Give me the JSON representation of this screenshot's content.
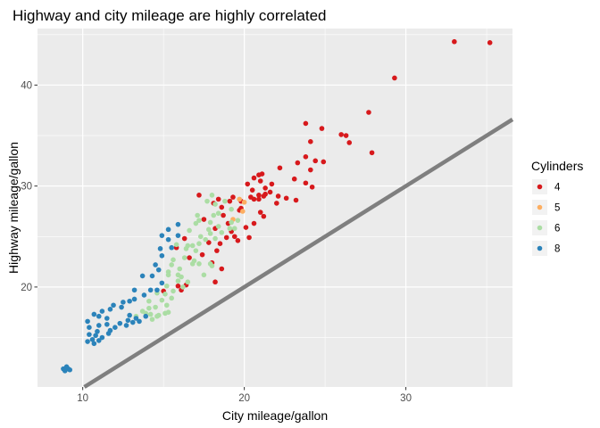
{
  "chart_data": {
    "type": "scatter",
    "title": "Highway and city mileage are highly correlated",
    "xlabel": "City mileage/gallon",
    "ylabel": "Highway mileage/gallon",
    "xlim": [
      7.2,
      36.6
    ],
    "ylim": [
      10.1,
      45.6
    ],
    "x_ticks": [
      10,
      20,
      30
    ],
    "y_ticks": [
      20,
      30,
      40
    ],
    "grid": true,
    "legend": {
      "title": "Cylinders",
      "position": "right"
    },
    "reference_line": {
      "intercept": 0,
      "slope": 1,
      "color": "#7f7f7f"
    },
    "colors": {
      "4": "#d7191c",
      "5": "#fdae61",
      "6": "#abdda4",
      "8": "#2b83ba",
      "panel": "#ebebeb",
      "grid": "#ffffff"
    },
    "series": [
      {
        "name": "4",
        "color": "#d7191c",
        "points": [
          [
            33,
            44.3
          ],
          [
            35.2,
            44.2
          ],
          [
            29.3,
            40.7
          ],
          [
            27.7,
            37.3
          ],
          [
            23.8,
            36.2
          ],
          [
            24.8,
            35.7
          ],
          [
            26,
            35.1
          ],
          [
            26.3,
            35
          ],
          [
            26.5,
            34.3
          ],
          [
            24.1,
            34.4
          ],
          [
            27.9,
            33.3
          ],
          [
            23.8,
            32.9
          ],
          [
            24.4,
            32.5
          ],
          [
            24.9,
            32.4
          ],
          [
            24.1,
            31.6
          ],
          [
            23.3,
            32.3
          ],
          [
            22.2,
            31.8
          ],
          [
            21.1,
            31.2
          ],
          [
            20.9,
            31.1
          ],
          [
            20.6,
            30.8
          ],
          [
            21,
            30.5
          ],
          [
            20.2,
            30.2
          ],
          [
            21.7,
            30.2
          ],
          [
            23.1,
            30.7
          ],
          [
            23.8,
            30.3
          ],
          [
            24.2,
            29.9
          ],
          [
            20.5,
            29.6
          ],
          [
            21.3,
            29.8
          ],
          [
            21.6,
            29.4
          ],
          [
            20.9,
            29.1
          ],
          [
            21.2,
            29
          ],
          [
            20.4,
            28.9
          ],
          [
            20.9,
            28.7
          ],
          [
            20.6,
            28.7
          ],
          [
            21.3,
            29.2
          ],
          [
            22.1,
            29
          ],
          [
            22.6,
            28.8
          ],
          [
            23.2,
            28.6
          ],
          [
            22,
            28.3
          ],
          [
            19.3,
            28.9
          ],
          [
            19.8,
            28.5
          ],
          [
            19.1,
            28.5
          ],
          [
            18.4,
            28.7
          ],
          [
            18.6,
            27.9
          ],
          [
            18.1,
            28.3
          ],
          [
            19.7,
            27.6
          ],
          [
            21,
            27.4
          ],
          [
            21.2,
            27
          ],
          [
            20.6,
            26.3
          ],
          [
            20.1,
            25.9
          ],
          [
            19,
            26.3
          ],
          [
            19.2,
            25.5
          ],
          [
            18.2,
            25.8
          ],
          [
            17.5,
            26.7
          ],
          [
            18.7,
            27.1
          ],
          [
            19.8,
            27.8
          ],
          [
            19.4,
            25
          ],
          [
            18.9,
            24.9
          ],
          [
            18.5,
            24.3
          ],
          [
            20.3,
            24.9
          ],
          [
            19.6,
            24.6
          ],
          [
            17.8,
            24.4
          ],
          [
            18.3,
            23.6
          ],
          [
            18,
            22.4
          ],
          [
            18.2,
            20.5
          ],
          [
            16.4,
            20.2
          ],
          [
            16.1,
            19.7
          ],
          [
            15,
            19.6
          ],
          [
            17.2,
            29.1
          ],
          [
            16.3,
            24.8
          ],
          [
            15.8,
            23.9
          ],
          [
            17.4,
            23.2
          ],
          [
            18.6,
            21.8
          ],
          [
            15.9,
            20.1
          ],
          [
            16.6,
            22.9
          ]
        ]
      },
      {
        "name": "5",
        "color": "#fdae61",
        "points": [
          [
            19.7,
            28.7
          ],
          [
            20,
            28.4
          ],
          [
            19.9,
            27.5
          ],
          [
            19.3,
            26.7
          ]
        ]
      },
      {
        "name": "6",
        "color": "#abdda4",
        "points": [
          [
            18,
            29.1
          ],
          [
            17.7,
            28.5
          ],
          [
            18.2,
            28.2
          ],
          [
            19.2,
            27.7
          ],
          [
            18.1,
            27.1
          ],
          [
            17.9,
            26.4
          ],
          [
            19.2,
            26.4
          ],
          [
            18.4,
            26
          ],
          [
            17.8,
            25.7
          ],
          [
            18.6,
            25.4
          ],
          [
            17,
            26.3
          ],
          [
            16.6,
            25.6
          ],
          [
            17.9,
            25.3
          ],
          [
            18.2,
            24.8
          ],
          [
            19.6,
            26.6
          ],
          [
            19.1,
            25.8
          ],
          [
            16.5,
            24.1
          ],
          [
            17.2,
            24.3
          ],
          [
            17,
            23.6
          ],
          [
            16.4,
            23.8
          ],
          [
            15.8,
            24.2
          ],
          [
            17.3,
            25
          ],
          [
            17.6,
            24.7
          ],
          [
            15.6,
            22.7
          ],
          [
            16.3,
            22.9
          ],
          [
            15.5,
            22.2
          ],
          [
            16.8,
            22.3
          ],
          [
            17.2,
            22.3
          ],
          [
            18,
            22.1
          ],
          [
            16,
            21.8
          ],
          [
            15.3,
            21.5
          ],
          [
            15.9,
            21.2
          ],
          [
            15.3,
            21.2
          ],
          [
            16.5,
            20.5
          ],
          [
            17.5,
            21.2
          ],
          [
            17.9,
            22.3
          ],
          [
            15.2,
            20.1
          ],
          [
            16.2,
            20
          ],
          [
            15.1,
            19.3
          ],
          [
            15.6,
            19.6
          ],
          [
            14.9,
            18.7
          ],
          [
            15.5,
            18.9
          ],
          [
            14.5,
            18
          ],
          [
            15.2,
            18.2
          ],
          [
            14.1,
            17.9
          ],
          [
            14.2,
            17.3
          ],
          [
            15.1,
            17.4
          ],
          [
            14.7,
            17.2
          ],
          [
            14.3,
            16.8
          ],
          [
            15.3,
            17.5
          ],
          [
            13.7,
            17.6
          ],
          [
            13.3,
            17.1
          ],
          [
            14.1,
            18.6
          ],
          [
            14.6,
            19.4
          ],
          [
            15.9,
            20.6
          ],
          [
            16.9,
            22.6
          ],
          [
            17.2,
            26.6
          ],
          [
            18.4,
            27.3
          ],
          [
            18.8,
            28.5
          ],
          [
            19.4,
            25.8
          ],
          [
            13.9,
            17.4
          ],
          [
            14.6,
            17.1
          ],
          [
            16.1,
            21
          ],
          [
            16.8,
            24.1
          ],
          [
            17.1,
            27.1
          ]
        ]
      },
      {
        "name": "8",
        "color": "#2b83ba",
        "points": [
          [
            15.9,
            26.2
          ],
          [
            15.3,
            25.7
          ],
          [
            14.9,
            25.1
          ],
          [
            15.3,
            24.7
          ],
          [
            15.5,
            23.9
          ],
          [
            14.8,
            23.8
          ],
          [
            14.9,
            23.1
          ],
          [
            14.5,
            22.2
          ],
          [
            14.7,
            21.7
          ],
          [
            14.3,
            21.1
          ],
          [
            13.7,
            21.1
          ],
          [
            14.9,
            20.4
          ],
          [
            14.6,
            19.7
          ],
          [
            14.2,
            19.7
          ],
          [
            13.2,
            19.7
          ],
          [
            13.8,
            19.2
          ],
          [
            13.2,
            18.8
          ],
          [
            12.9,
            18.6
          ],
          [
            12.5,
            18.5
          ],
          [
            11.9,
            18.2
          ],
          [
            12.4,
            18
          ],
          [
            11.7,
            17.8
          ],
          [
            11.2,
            17.6
          ],
          [
            10.7,
            17.3
          ],
          [
            11,
            17.1
          ],
          [
            11.5,
            16.9
          ],
          [
            12.9,
            17.2
          ],
          [
            13.3,
            16.9
          ],
          [
            12.8,
            16.7
          ],
          [
            13.5,
            16.6
          ],
          [
            13.1,
            16.5
          ],
          [
            12.3,
            16.4
          ],
          [
            11.5,
            16.3
          ],
          [
            11,
            16.2
          ],
          [
            10.4,
            16
          ],
          [
            10.9,
            15.6
          ],
          [
            10.8,
            15.2
          ],
          [
            11.2,
            15
          ],
          [
            10.6,
            14.8
          ],
          [
            10.3,
            14.6
          ],
          [
            10.7,
            14.4
          ],
          [
            11,
            14.7
          ],
          [
            10.4,
            15.3
          ],
          [
            11.6,
            15.4
          ],
          [
            12,
            16
          ],
          [
            12.7,
            16.2
          ],
          [
            13.9,
            17.1
          ],
          [
            10.3,
            16.6
          ],
          [
            11.7,
            15.7
          ],
          [
            15.9,
            25.1
          ],
          [
            8.8,
            11.9
          ],
          [
            9.1,
            11.9
          ],
          [
            8.9,
            11.7
          ],
          [
            9.2,
            11.8
          ],
          [
            9,
            12.1
          ]
        ]
      }
    ]
  }
}
